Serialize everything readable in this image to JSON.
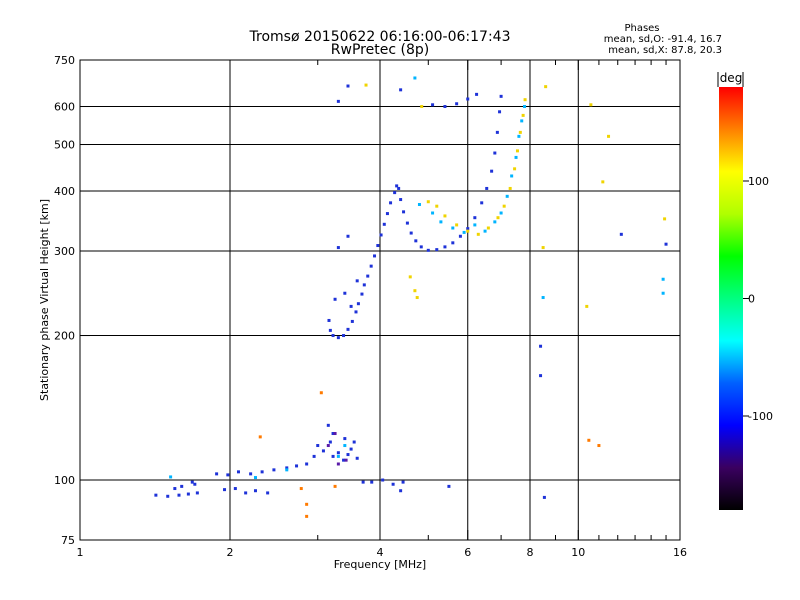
{
  "chart_data": {
    "type": "scatter",
    "title": "Tromsø 20150622 06:16:00-06:17:43",
    "subtitle": "RwPretec (8p)",
    "xlabel": "Frequency [MHz]",
    "ylabel": "Stationary phase Virtual Height [km]",
    "x_scale": "log",
    "y_scale": "log",
    "xlim": [
      1,
      16
    ],
    "ylim": [
      75,
      750
    ],
    "x_ticks": [
      1,
      2,
      4,
      6,
      8,
      10,
      16
    ],
    "x_tick_labels": [
      "1",
      "2",
      "4",
      "6",
      "8",
      "10",
      "16"
    ],
    "x_grid": [
      2,
      4,
      6,
      8,
      10
    ],
    "y_ticks": [
      75,
      100,
      200,
      300,
      400,
      500,
      600,
      750
    ],
    "y_tick_labels": [
      "75",
      "100",
      "200",
      "300",
      "400",
      "500",
      "600",
      "750"
    ],
    "y_grid": [
      100,
      200,
      300,
      400,
      500,
      600
    ],
    "grid": true,
    "phase_stats": {
      "heading": "Phases",
      "line_o": "mean, sd,O: -91.4, 16.7",
      "line_x": "mean, sd,X:  87.8, 20.3"
    },
    "colorbar": {
      "label": "deg",
      "range": [
        -180,
        180
      ],
      "ticks": [
        -100,
        0,
        100
      ],
      "tick_labels": [
        "-100",
        "0",
        "100"
      ],
      "palette": [
        "#000000",
        "#3a0060",
        "#0000ff",
        "#0060ff",
        "#00ffff",
        "#00ff80",
        "#00ff00",
        "#b0ff00",
        "#ffff00",
        "#ff8000",
        "#ff0000"
      ]
    },
    "series": [
      {
        "values": [
          [
            1.42,
            93
          ],
          [
            1.5,
            92.5
          ],
          [
            1.58,
            93
          ],
          [
            1.65,
            93.5
          ],
          [
            1.72,
            94
          ],
          [
            1.6,
            97
          ],
          [
            1.7,
            98
          ],
          [
            1.55,
            96
          ],
          [
            1.68,
            99
          ],
          [
            1.95,
            95.5
          ],
          [
            2.05,
            96
          ],
          [
            2.15,
            94
          ],
          [
            2.25,
            95
          ],
          [
            2.38,
            94
          ],
          [
            1.88,
            103
          ],
          [
            1.98,
            102.5
          ],
          [
            2.08,
            104
          ],
          [
            2.2,
            103
          ],
          [
            2.32,
            104
          ],
          [
            2.45,
            105
          ],
          [
            2.6,
            106
          ],
          [
            2.72,
            107
          ],
          [
            2.85,
            108
          ],
          [
            2.95,
            112
          ],
          [
            3.0,
            118
          ],
          [
            3.08,
            115
          ],
          [
            3.18,
            120
          ],
          [
            3.22,
            112
          ],
          [
            3.3,
            114
          ],
          [
            3.38,
            110
          ],
          [
            3.45,
            113
          ],
          [
            3.5,
            116
          ],
          [
            3.55,
            120
          ],
          [
            3.6,
            111
          ],
          [
            3.7,
            99
          ],
          [
            3.85,
            99
          ],
          [
            4.05,
            100
          ],
          [
            4.25,
            98
          ],
          [
            4.45,
            99
          ],
          [
            3.15,
            130
          ],
          [
            3.22,
            125
          ],
          [
            3.4,
            122
          ],
          [
            3.16,
            215
          ],
          [
            3.18,
            205
          ],
          [
            3.22,
            200
          ],
          [
            3.3,
            198
          ],
          [
            3.38,
            200
          ],
          [
            3.45,
            206
          ],
          [
            3.52,
            214
          ],
          [
            3.58,
            224
          ],
          [
            3.62,
            233
          ],
          [
            3.68,
            244
          ],
          [
            3.72,
            255
          ],
          [
            3.78,
            266
          ],
          [
            3.84,
            279
          ],
          [
            3.9,
            293
          ],
          [
            3.96,
            308
          ],
          [
            4.02,
            324
          ],
          [
            4.08,
            341
          ],
          [
            4.14,
            359
          ],
          [
            4.2,
            378
          ],
          [
            4.28,
            397
          ],
          [
            4.32,
            410
          ],
          [
            4.36,
            405
          ],
          [
            4.4,
            384
          ],
          [
            4.46,
            362
          ],
          [
            4.54,
            343
          ],
          [
            4.62,
            327
          ],
          [
            4.72,
            315
          ],
          [
            4.84,
            306
          ],
          [
            5.0,
            301
          ],
          [
            5.2,
            302
          ],
          [
            5.4,
            306
          ],
          [
            5.6,
            312
          ],
          [
            5.8,
            322
          ],
          [
            6.0,
            334
          ],
          [
            6.2,
            352
          ],
          [
            6.4,
            378
          ],
          [
            6.55,
            405
          ],
          [
            6.7,
            440
          ],
          [
            6.8,
            480
          ],
          [
            6.88,
            530
          ],
          [
            6.95,
            585
          ],
          [
            7.0,
            630
          ],
          [
            3.4,
            245
          ],
          [
            3.5,
            230
          ],
          [
            3.25,
            238
          ],
          [
            3.6,
            260
          ],
          [
            3.3,
            305
          ],
          [
            3.45,
            322
          ],
          [
            3.3,
            615
          ],
          [
            3.45,
            662
          ],
          [
            4.4,
            650
          ],
          [
            5.1,
            605
          ],
          [
            5.4,
            600
          ],
          [
            5.7,
            608
          ],
          [
            6.0,
            622
          ],
          [
            6.25,
            636
          ],
          [
            8.4,
            190
          ],
          [
            8.4,
            165
          ],
          [
            8.55,
            92
          ],
          [
            12.2,
            325
          ],
          [
            15.0,
            310
          ],
          [
            4.4,
            95
          ],
          [
            5.5,
            97
          ]
        ]
      },
      {
        "values": [
          [
            1.52,
            101.5
          ],
          [
            2.25,
            101.2
          ],
          [
            3.3,
            112
          ],
          [
            3.4,
            118
          ],
          [
            2.6,
            105
          ],
          [
            4.8,
            375
          ],
          [
            5.1,
            360
          ],
          [
            5.3,
            345
          ],
          [
            5.6,
            335
          ],
          [
            5.9,
            328
          ],
          [
            6.2,
            340
          ],
          [
            6.5,
            330
          ],
          [
            6.8,
            345
          ],
          [
            7.0,
            360
          ],
          [
            7.2,
            390
          ],
          [
            7.35,
            430
          ],
          [
            7.5,
            470
          ],
          [
            7.6,
            520
          ],
          [
            7.7,
            560
          ],
          [
            7.8,
            600
          ],
          [
            14.8,
            262
          ],
          [
            14.8,
            245
          ],
          [
            8.5,
            240
          ],
          [
            4.7,
            688
          ]
        ]
      },
      {
        "values": [
          [
            5.0,
            380
          ],
          [
            5.2,
            372
          ],
          [
            5.4,
            355
          ],
          [
            5.7,
            340
          ],
          [
            6.0,
            330
          ],
          [
            6.3,
            325
          ],
          [
            6.6,
            335
          ],
          [
            6.9,
            352
          ],
          [
            7.1,
            372
          ],
          [
            7.3,
            405
          ],
          [
            7.45,
            445
          ],
          [
            7.55,
            485
          ],
          [
            7.65,
            530
          ],
          [
            7.75,
            575
          ],
          [
            7.82,
            620
          ],
          [
            4.6,
            265
          ],
          [
            4.7,
            248
          ],
          [
            4.75,
            240
          ],
          [
            3.75,
            665
          ],
          [
            4.85,
            600
          ],
          [
            8.6,
            660
          ],
          [
            10.6,
            605
          ],
          [
            11.5,
            520
          ],
          [
            8.5,
            305
          ],
          [
            10.4,
            230
          ],
          [
            11.2,
            418
          ],
          [
            14.9,
            350
          ]
        ]
      },
      {
        "values": [
          [
            2.3,
            123
          ],
          [
            2.85,
            89
          ],
          [
            2.85,
            84
          ],
          [
            2.78,
            96
          ],
          [
            3.05,
            152
          ],
          [
            3.25,
            97
          ],
          [
            10.5,
            121
          ],
          [
            11.0,
            118
          ]
        ]
      },
      {
        "values": [
          [
            3.15,
            118
          ],
          [
            3.25,
            125
          ],
          [
            3.3,
            108
          ],
          [
            3.42,
            110
          ]
        ]
      }
    ]
  }
}
